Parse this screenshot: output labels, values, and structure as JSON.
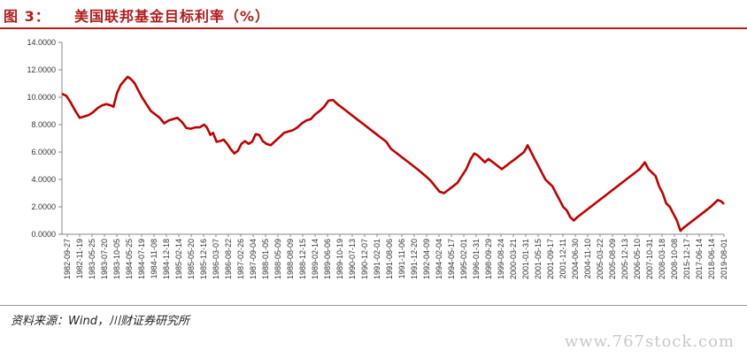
{
  "header": {
    "figure_label": "图 3：",
    "title": "美国联邦基金目标利率（%）"
  },
  "footer": {
    "source": "资料来源：Wind，川财证券研究所",
    "watermark": "www.767stock.com"
  },
  "colors": {
    "accent": "#b01c1c",
    "line": "#c00000"
  },
  "chart_data": {
    "type": "line",
    "title": "美国联邦基金目标利率（%）",
    "xlabel": "",
    "ylabel": "",
    "ylim": [
      0,
      14
    ],
    "yticks": [
      "0.0000",
      "2.0000",
      "4.0000",
      "6.0000",
      "8.0000",
      "10.0000",
      "12.0000",
      "14.0000"
    ],
    "xticks": [
      "1982-09-27",
      "1982-11-19",
      "1983-05-25",
      "1983-07-20",
      "1983-10-05",
      "1984-05-25",
      "1984-07-19",
      "1984-11-08",
      "1984-12-18",
      "1985-02-14",
      "1985-05-20",
      "1985-12-16",
      "1986-03-07",
      "1986-08-22",
      "1987-02-26",
      "1987-09-04",
      "1988-01-05",
      "1988-05-09",
      "1988-08-09",
      "1988-12-15",
      "1989-02-14",
      "1989-06-06",
      "1989-10-19",
      "1990-07-13",
      "1990-12-07",
      "1991-02-01",
      "1991-08-06",
      "1991-11-06",
      "1991-12-20",
      "1992-04-09",
      "1994-02-04",
      "1994-05-17",
      "1995-02-01",
      "1996-01-31",
      "1998-09-29",
      "1999-08-24",
      "2000-03-21",
      "2001-01-31",
      "2001-05-15",
      "2001-09-17",
      "2001-12-11",
      "2004-06-30",
      "2004-11-10",
      "2005-03-22",
      "2005-08-09",
      "2005-12-13",
      "2006-05-10",
      "2007-10-31",
      "2008-03-18",
      "2008-10-08",
      "2015-12-17",
      "2017-06-14",
      "2018-06-14",
      "2019-08-01"
    ],
    "series": [
      {
        "values": [
          {
            "x": 0,
            "y": 10.25
          },
          {
            "x": 0.5,
            "y": 10.1
          },
          {
            "x": 1,
            "y": 9.6
          },
          {
            "x": 1.5,
            "y": 9.0
          },
          {
            "x": 2,
            "y": 8.5
          },
          {
            "x": 2.5,
            "y": 8.6
          },
          {
            "x": 3,
            "y": 8.7
          },
          {
            "x": 3.5,
            "y": 8.9
          },
          {
            "x": 4,
            "y": 9.2
          },
          {
            "x": 4.5,
            "y": 9.4
          },
          {
            "x": 5,
            "y": 9.5
          },
          {
            "x": 5.5,
            "y": 9.4
          },
          {
            "x": 5.8,
            "y": 9.3
          },
          {
            "x": 6.2,
            "y": 10.3
          },
          {
            "x": 6.6,
            "y": 10.9
          },
          {
            "x": 7,
            "y": 11.2
          },
          {
            "x": 7.4,
            "y": 11.5
          },
          {
            "x": 7.8,
            "y": 11.3
          },
          {
            "x": 8.2,
            "y": 11.0
          },
          {
            "x": 8.6,
            "y": 10.5
          },
          {
            "x": 9,
            "y": 10.0
          },
          {
            "x": 9.5,
            "y": 9.5
          },
          {
            "x": 10,
            "y": 9.0
          },
          {
            "x": 10.5,
            "y": 8.75
          },
          {
            "x": 11,
            "y": 8.5
          },
          {
            "x": 11.5,
            "y": 8.1
          },
          {
            "x": 12,
            "y": 8.3
          },
          {
            "x": 12.5,
            "y": 8.4
          },
          {
            "x": 13,
            "y": 8.5
          },
          {
            "x": 13.5,
            "y": 8.2
          },
          {
            "x": 14,
            "y": 7.75
          },
          {
            "x": 14.5,
            "y": 7.7
          },
          {
            "x": 15,
            "y": 7.8
          },
          {
            "x": 15.5,
            "y": 7.8
          },
          {
            "x": 16,
            "y": 8.0
          },
          {
            "x": 16.3,
            "y": 7.8
          },
          {
            "x": 16.7,
            "y": 7.25
          },
          {
            "x": 17,
            "y": 7.4
          },
          {
            "x": 17.4,
            "y": 6.75
          },
          {
            "x": 17.8,
            "y": 6.8
          },
          {
            "x": 18.2,
            "y": 6.9
          },
          {
            "x": 18.6,
            "y": 6.6
          },
          {
            "x": 19,
            "y": 6.2
          },
          {
            "x": 19.4,
            "y": 5.9
          },
          {
            "x": 19.8,
            "y": 6.1
          },
          {
            "x": 20.2,
            "y": 6.6
          },
          {
            "x": 20.6,
            "y": 6.8
          },
          {
            "x": 21,
            "y": 6.6
          },
          {
            "x": 21.4,
            "y": 6.75
          },
          {
            "x": 21.8,
            "y": 7.3
          },
          {
            "x": 22.2,
            "y": 7.25
          },
          {
            "x": 22.6,
            "y": 6.8
          },
          {
            "x": 23,
            "y": 6.6
          },
          {
            "x": 23.5,
            "y": 6.5
          },
          {
            "x": 24,
            "y": 6.8
          },
          {
            "x": 24.5,
            "y": 7.1
          },
          {
            "x": 25,
            "y": 7.4
          },
          {
            "x": 25.5,
            "y": 7.5
          },
          {
            "x": 26,
            "y": 7.6
          },
          {
            "x": 26.5,
            "y": 7.8
          },
          {
            "x": 27,
            "y": 8.1
          },
          {
            "x": 27.5,
            "y": 8.3
          },
          {
            "x": 28,
            "y": 8.4
          },
          {
            "x": 28.5,
            "y": 8.75
          },
          {
            "x": 29,
            "y": 9.0
          },
          {
            "x": 29.5,
            "y": 9.3
          },
          {
            "x": 30,
            "y": 9.75
          },
          {
            "x": 30.5,
            "y": 9.8
          },
          {
            "x": 31,
            "y": 9.5
          },
          {
            "x": 32,
            "y": 9.0
          },
          {
            "x": 33,
            "y": 8.5
          },
          {
            "x": 34,
            "y": 8.0
          },
          {
            "x": 35,
            "y": 7.5
          },
          {
            "x": 36,
            "y": 7.0
          },
          {
            "x": 36.5,
            "y": 6.75
          },
          {
            "x": 37,
            "y": 6.25
          },
          {
            "x": 38,
            "y": 5.75
          },
          {
            "x": 39,
            "y": 5.25
          },
          {
            "x": 40,
            "y": 4.75
          },
          {
            "x": 41,
            "y": 4.2
          },
          {
            "x": 41.5,
            "y": 3.9
          },
          {
            "x": 42,
            "y": 3.5
          },
          {
            "x": 42.5,
            "y": 3.1
          },
          {
            "x": 43,
            "y": 3.0
          },
          {
            "x": 43.5,
            "y": 3.25
          },
          {
            "x": 44,
            "y": 3.5
          },
          {
            "x": 44.5,
            "y": 3.75
          },
          {
            "x": 45,
            "y": 4.25
          },
          {
            "x": 45.5,
            "y": 4.75
          },
          {
            "x": 46,
            "y": 5.5
          },
          {
            "x": 46.4,
            "y": 5.9
          },
          {
            "x": 46.8,
            "y": 5.75
          },
          {
            "x": 47.2,
            "y": 5.5
          },
          {
            "x": 47.6,
            "y": 5.25
          },
          {
            "x": 48,
            "y": 5.5
          },
          {
            "x": 48.5,
            "y": 5.25
          },
          {
            "x": 49,
            "y": 5.0
          },
          {
            "x": 49.5,
            "y": 4.75
          },
          {
            "x": 50,
            "y": 5.0
          },
          {
            "x": 50.5,
            "y": 5.25
          },
          {
            "x": 51,
            "y": 5.5
          },
          {
            "x": 51.5,
            "y": 5.75
          },
          {
            "x": 52,
            "y": 6.0
          },
          {
            "x": 52.4,
            "y": 6.5
          },
          {
            "x": 52.8,
            "y": 6.0
          },
          {
            "x": 53.2,
            "y": 5.5
          },
          {
            "x": 53.6,
            "y": 5.0
          },
          {
            "x": 54,
            "y": 4.5
          },
          {
            "x": 54.4,
            "y": 4.0
          },
          {
            "x": 54.8,
            "y": 3.75
          },
          {
            "x": 55.2,
            "y": 3.5
          },
          {
            "x": 55.6,
            "y": 3.0
          },
          {
            "x": 56,
            "y": 2.5
          },
          {
            "x": 56.4,
            "y": 2.0
          },
          {
            "x": 56.8,
            "y": 1.75
          },
          {
            "x": 57.2,
            "y": 1.25
          },
          {
            "x": 57.6,
            "y": 1.0
          },
          {
            "x": 58,
            "y": 1.25
          },
          {
            "x": 59,
            "y": 1.75
          },
          {
            "x": 60,
            "y": 2.25
          },
          {
            "x": 61,
            "y": 2.75
          },
          {
            "x": 62,
            "y": 3.25
          },
          {
            "x": 63,
            "y": 3.75
          },
          {
            "x": 64,
            "y": 4.25
          },
          {
            "x": 65,
            "y": 4.75
          },
          {
            "x": 65.6,
            "y": 5.25
          },
          {
            "x": 66,
            "y": 4.75
          },
          {
            "x": 66.4,
            "y": 4.5
          },
          {
            "x": 66.8,
            "y": 4.25
          },
          {
            "x": 67.2,
            "y": 3.5
          },
          {
            "x": 67.6,
            "y": 3.0
          },
          {
            "x": 68,
            "y": 2.25
          },
          {
            "x": 68.4,
            "y": 2.0
          },
          {
            "x": 68.8,
            "y": 1.5
          },
          {
            "x": 69.2,
            "y": 1.0
          },
          {
            "x": 69.6,
            "y": 0.25
          },
          {
            "x": 70,
            "y": 0.5
          },
          {
            "x": 71,
            "y": 1.0
          },
          {
            "x": 72,
            "y": 1.5
          },
          {
            "x": 73,
            "y": 2.0
          },
          {
            "x": 73.8,
            "y": 2.5
          },
          {
            "x": 74.2,
            "y": 2.4
          },
          {
            "x": 74.5,
            "y": 2.2
          }
        ],
        "x_max": 74.5
      }
    ],
    "grid": false
  }
}
